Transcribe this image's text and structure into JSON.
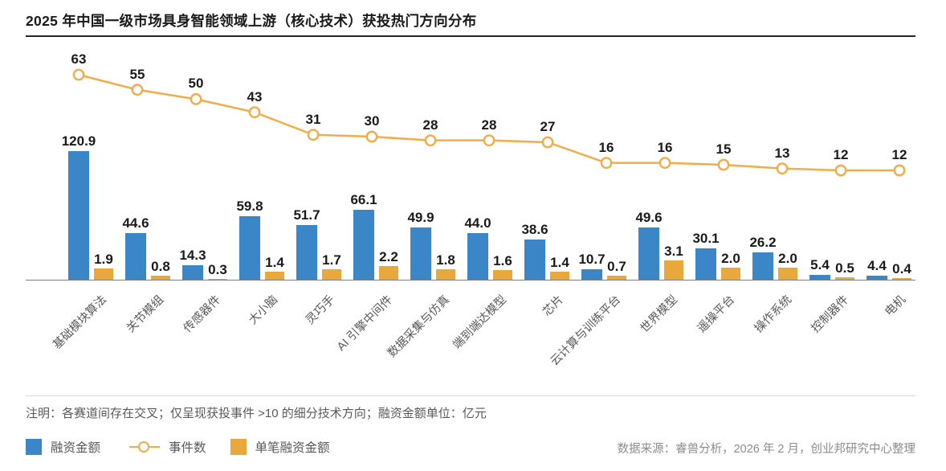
{
  "title": "2025 年中国一级市场具身智能领域上游（核心技术）获投热门方向分布",
  "note": "注明：各赛道间存在交叉；仅呈现获投事件 >10 的细分技术方向；融资金额单位：亿元",
  "source": "数据来源：睿兽分析，2026 年 2 月，创业邦研究中心整理",
  "colors": {
    "bar_blue": "#3b86c6",
    "bar_gold": "#e9a83c",
    "line_orange": "#f2ac49",
    "axis_line": "#7f7f7f",
    "label_dark": "#1a1a1a",
    "label_gray": "#595959",
    "source_gray": "#8c8c8c"
  },
  "legend": [
    {
      "label": "融资金额",
      "symbol": "square",
      "color": "#3b86c6"
    },
    {
      "label": "事件数",
      "symbol": "line-circle",
      "color": "#f2ac49"
    },
    {
      "label": "单笔融资金额",
      "symbol": "square",
      "color": "#e9a83c"
    }
  ],
  "chart_data": {
    "type": "bar+line",
    "title": "2025 年中国一级市场具身智能领域上游（核心技术）获投热门方向分布",
    "categories": [
      "基础模块算法",
      "关节模组",
      "传感器件",
      "大小脑",
      "灵巧手",
      "AI 引擎中间件",
      "数据采集与仿真",
      "端到端达模型",
      "芯片",
      "云计算与训练平台",
      "世界模型",
      "遥操平台",
      "操作系统",
      "控制器件",
      "电机"
    ],
    "series": [
      {
        "name": "融资金额",
        "type": "bar",
        "unit": "亿元",
        "color": "#3b86c6",
        "values": [
          120.9,
          44.6,
          14.3,
          59.8,
          51.7,
          66.1,
          49.9,
          44.0,
          38.6,
          10.7,
          49.6,
          30.1,
          26.2,
          5.4,
          4.4
        ],
        "value_labels": [
          "120.9",
          "44.6",
          "14.3",
          "59.8",
          "51.7",
          "66.1",
          "49.9",
          "44.0",
          "38.6",
          "10.7",
          "49.6",
          "30.1",
          "26.2",
          "5.4",
          "4.4"
        ]
      },
      {
        "name": "单笔融资金额",
        "type": "bar",
        "unit": "亿元",
        "color": "#e9a83c",
        "values": [
          1.9,
          0.8,
          0.3,
          1.4,
          1.7,
          2.2,
          1.8,
          1.6,
          1.4,
          0.7,
          3.1,
          2.0,
          2.0,
          0.5,
          0.4
        ],
        "value_labels": [
          "1.9",
          "0.8",
          "0.3",
          "1.4",
          "1.7",
          "2.2",
          "1.8",
          "1.6",
          "1.4",
          "0.7",
          "3.1",
          "2.0",
          "2.0",
          "0.5",
          "0.4"
        ]
      },
      {
        "name": "事件数",
        "type": "line",
        "color": "#f2ac49",
        "marker": "hollow-circle",
        "values": [
          63,
          55,
          50,
          43,
          31,
          30,
          28,
          28,
          27,
          16,
          16,
          15,
          13,
          12,
          12
        ],
        "value_labels": [
          "63",
          "55",
          "50",
          "43",
          "31",
          "30",
          "28",
          "28",
          "27",
          "16",
          "16",
          "15",
          "13",
          "12",
          "12"
        ]
      }
    ],
    "x_tick_rotation": -45,
    "grid": false,
    "y_axis_visible": false,
    "x_axis_line": true,
    "legend_position": "bottom-left",
    "footnote": "注明：各赛道间存在交叉；仅呈现获投事件 >10 的细分技术方向；融资金额单位：亿元",
    "data_source": "数据来源：睿兽分析，2026 年 2 月，创业邦研究中心整理"
  }
}
